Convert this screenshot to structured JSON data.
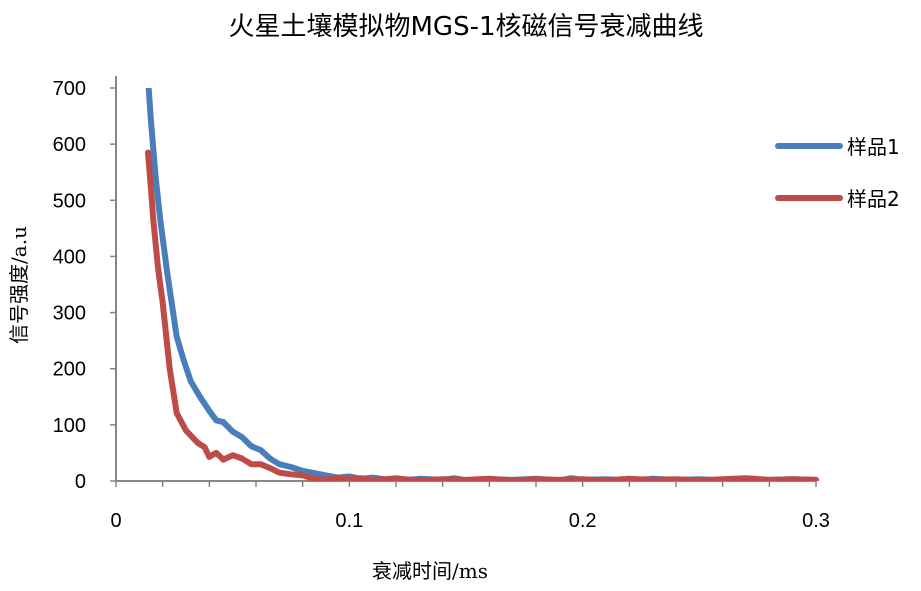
{
  "chart_data": {
    "type": "line",
    "title": "火星土壤模拟物MGS-1核磁信号衰减曲线",
    "xlabel": "衰减时间/ms",
    "ylabel": "信号强度/a.u",
    "xlim": [
      0,
      0.3
    ],
    "ylim": [
      0,
      700
    ],
    "xticks": [
      "0",
      "0.1",
      "0.2",
      "0.3"
    ],
    "yticks": [
      "0",
      "100",
      "200",
      "300",
      "400",
      "500",
      "600",
      "700"
    ],
    "grid": false,
    "legend_position": "right",
    "series": [
      {
        "name": "样品1",
        "color": "#4a7ebb",
        "points": [
          [
            0.013,
            760
          ],
          [
            0.015,
            640
          ],
          [
            0.017,
            540
          ],
          [
            0.019,
            465
          ],
          [
            0.022,
            370
          ],
          [
            0.026,
            257
          ],
          [
            0.029,
            215
          ],
          [
            0.032,
            178
          ],
          [
            0.036,
            150
          ],
          [
            0.04,
            125
          ],
          [
            0.043,
            108
          ],
          [
            0.046,
            105
          ],
          [
            0.05,
            88
          ],
          [
            0.054,
            78
          ],
          [
            0.058,
            62
          ],
          [
            0.062,
            55
          ],
          [
            0.066,
            40
          ],
          [
            0.07,
            30
          ],
          [
            0.075,
            25
          ],
          [
            0.08,
            18
          ],
          [
            0.085,
            14
          ],
          [
            0.09,
            10
          ],
          [
            0.095,
            6
          ],
          [
            0.1,
            8
          ],
          [
            0.105,
            4
          ],
          [
            0.11,
            6
          ],
          [
            0.115,
            3
          ],
          [
            0.12,
            5
          ],
          [
            0.125,
            2
          ],
          [
            0.13,
            4
          ],
          [
            0.14,
            2
          ],
          [
            0.145,
            5
          ],
          [
            0.15,
            1
          ],
          [
            0.16,
            3
          ],
          [
            0.17,
            2
          ],
          [
            0.18,
            4
          ],
          [
            0.19,
            1
          ],
          [
            0.195,
            5
          ],
          [
            0.2,
            2
          ],
          [
            0.21,
            3
          ],
          [
            0.22,
            1
          ],
          [
            0.23,
            4
          ],
          [
            0.24,
            2
          ],
          [
            0.25,
            3
          ],
          [
            0.26,
            1
          ],
          [
            0.27,
            4
          ],
          [
            0.28,
            2
          ],
          [
            0.29,
            3
          ],
          [
            0.3,
            2
          ]
        ]
      },
      {
        "name": "样品2",
        "color": "#be4b48",
        "points": [
          [
            0.0137,
            585
          ],
          [
            0.015,
            520
          ],
          [
            0.016,
            465
          ],
          [
            0.018,
            380
          ],
          [
            0.02,
            317
          ],
          [
            0.023,
            200
          ],
          [
            0.026,
            121
          ],
          [
            0.03,
            90
          ],
          [
            0.035,
            68
          ],
          [
            0.038,
            60
          ],
          [
            0.04,
            43
          ],
          [
            0.043,
            50
          ],
          [
            0.046,
            38
          ],
          [
            0.05,
            46
          ],
          [
            0.054,
            40
          ],
          [
            0.058,
            30
          ],
          [
            0.062,
            30
          ],
          [
            0.066,
            23
          ],
          [
            0.07,
            15
          ],
          [
            0.075,
            12
          ],
          [
            0.08,
            10
          ],
          [
            0.085,
            4
          ],
          [
            0.09,
            2
          ],
          [
            0.095,
            6
          ],
          [
            0.1,
            3
          ],
          [
            0.105,
            5
          ],
          [
            0.11,
            2
          ],
          [
            0.12,
            4
          ],
          [
            0.13,
            1
          ],
          [
            0.14,
            3
          ],
          [
            0.15,
            2
          ],
          [
            0.16,
            4
          ],
          [
            0.17,
            1
          ],
          [
            0.18,
            3
          ],
          [
            0.19,
            2
          ],
          [
            0.2,
            3
          ],
          [
            0.21,
            1
          ],
          [
            0.22,
            4
          ],
          [
            0.23,
            2
          ],
          [
            0.24,
            3
          ],
          [
            0.25,
            1
          ],
          [
            0.26,
            3
          ],
          [
            0.27,
            5
          ],
          [
            0.28,
            2
          ],
          [
            0.29,
            3
          ],
          [
            0.3,
            2
          ]
        ]
      }
    ]
  }
}
